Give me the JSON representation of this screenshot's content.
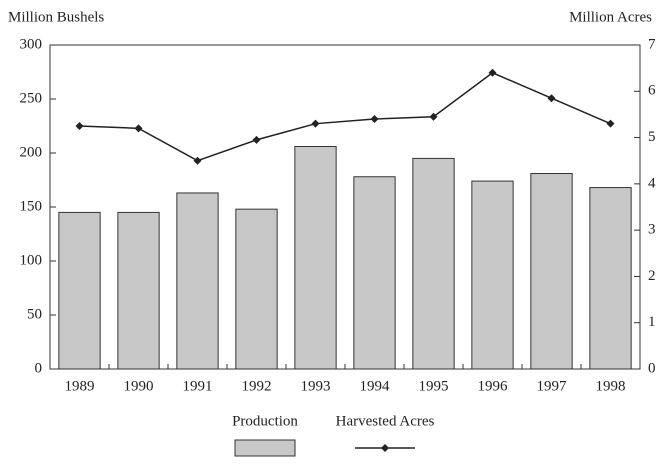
{
  "chart_data": {
    "type": "bar_line",
    "y_label": "Million Bushels",
    "y2_label": "Million Acres",
    "categories": [
      "1989",
      "1990",
      "1991",
      "1992",
      "1993",
      "1994",
      "1995",
      "1996",
      "1997",
      "1998"
    ],
    "series": [
      {
        "name": "Production",
        "type": "bar",
        "color": "#c8c8c8",
        "values": [
          145,
          145,
          163,
          148,
          206,
          178,
          195,
          174,
          181,
          168
        ]
      },
      {
        "name": "Harvested Acres",
        "type": "line",
        "axis": "y2",
        "color": "#222222",
        "values": [
          5.25,
          5.2,
          4.5,
          4.95,
          5.3,
          5.4,
          5.45,
          6.4,
          5.85,
          5.3
        ]
      }
    ],
    "ylim": [
      0,
      300
    ],
    "yticks": [
      0,
      50,
      100,
      150,
      200,
      250,
      300
    ],
    "y2lim": [
      0,
      7
    ],
    "y2ticks": [
      0,
      1,
      2,
      3,
      4,
      5,
      6,
      7
    ],
    "grid": false
  }
}
